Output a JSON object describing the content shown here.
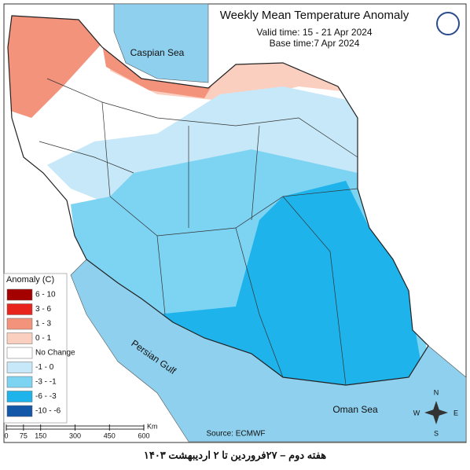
{
  "title": "Weekly Mean Temperature Anomaly",
  "valid_time": "Valid time: 15 - 21 Apr 2024",
  "base_time": "Base time:7 Apr 2024",
  "labels": {
    "caspian": "Caspian Sea",
    "persian_gulf": "Persian Gulf",
    "oman_sea": "Oman Sea"
  },
  "legend": {
    "title": "Anomaly (C)",
    "items": [
      {
        "label": "6 - 10",
        "color": "#a50000"
      },
      {
        "label": "3 - 6",
        "color": "#e8251d"
      },
      {
        "label": "1 - 3",
        "color": "#f4937c"
      },
      {
        "label": "0 - 1",
        "color": "#fbcfc0"
      },
      {
        "label": "No Change",
        "color": "#ffffff"
      },
      {
        "label": "-1 - 0",
        "color": "#c6e8f8"
      },
      {
        "label": "-3 - -1",
        "color": "#7dd3f2"
      },
      {
        "label": "-6 - -3",
        "color": "#1eb3ea"
      },
      {
        "label": "-10 - -6",
        "color": "#1357a8"
      }
    ]
  },
  "scale": {
    "ticks": [
      0,
      75,
      150,
      300,
      450,
      600
    ],
    "unit": "Km"
  },
  "source": "Source: ECMWF",
  "compass": {
    "n": "N",
    "e": "E",
    "s": "S",
    "w": "W"
  },
  "caption": "هفته دوم – ۲۷فروردین تا ۲ اردیبهشت ۱۴۰۳"
}
